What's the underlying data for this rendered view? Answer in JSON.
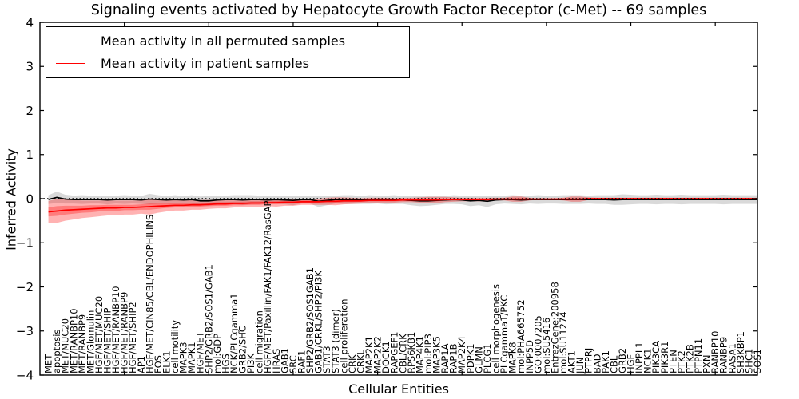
{
  "title": "Signaling events activated by Hepatocyte Growth Factor Receptor (c-Met) -- 69 samples",
  "axes": {
    "x_label": "Cellular Entities",
    "y_label": "Inferred Activity",
    "y_tick_labels": [
      "−4",
      "−3",
      "−2",
      "−1",
      "0",
      "1",
      "2",
      "3",
      "4"
    ],
    "y_tick_values": [
      -4,
      -3,
      -2,
      -1,
      0,
      1,
      2,
      3,
      4
    ],
    "x_tick_values": [
      10,
      20,
      30,
      40,
      50,
      60,
      70,
      80
    ]
  },
  "legend": {
    "entries": [
      {
        "label": "Mean activity in all permuted samples",
        "color": "#000000"
      },
      {
        "label": "Mean activity in patient samples",
        "color": "#ff0000"
      }
    ]
  },
  "chart_data": {
    "type": "line",
    "title": "Signaling events activated by Hepatocyte Growth Factor Receptor (c-Met) -- 69 samples",
    "xlabel": "Cellular Entities",
    "ylabel": "Inferred Activity",
    "xlim": [
      0,
      85
    ],
    "ylim": [
      -4,
      4
    ],
    "grid": false,
    "legend_position": "upper left",
    "zero_line": {
      "style": "dotted",
      "color": "#000000",
      "value": 0
    },
    "categories": [
      "MET",
      "apoptosis",
      "MET/MUC20",
      "MET/RANBP10",
      "MET/RANBP9",
      "MET/Glomulin",
      "HGF/MET/MUC20",
      "HGF/MET/SHIP",
      "HGF/MET/RANBP10",
      "HGF/MET/RANBP9",
      "HGF/MET/SHIP2",
      "AP1",
      "HGF/MET/CIN85/CBL/ENDOPHILINS",
      "FOS",
      "ELK1",
      "cell motility",
      "MAPK3",
      "MAPK1",
      "HGF/MET",
      "SHP2/GRB2/SOS1/GAB1",
      "mol:GDP",
      "HGS",
      "NCK/PLCgamma1",
      "GRB2/SHC",
      "PI3K",
      "cell migration",
      "HGF/MET/Paxillin/FAK1/FAK12/RasGAP",
      "HRAS",
      "GAB1",
      "SRC",
      "RAF1",
      "SHP2/GRB2/SOS1GAB1",
      "GAB1/CRKL/SHP2/PI3K",
      "STAT3",
      "STAT3 (dimer)",
      "cell proliferation",
      "CRK",
      "CRKL",
      "MAP2K1",
      "MAP2K2",
      "DOCK1",
      "RAPGEF1",
      "CBL/CRK",
      "RPS6KB1",
      "MAP4K1",
      "mol:PIP3",
      "MAP3K5",
      "RAP1A",
      "RAP1B",
      "MAP2K4",
      "PDPK1",
      "GLMN",
      "PLCG1",
      "cell morphogenesis",
      "PLCgamma1/PKC",
      "MAPK8",
      "mol:PHA665752",
      "INPP5D",
      "GO:0007205",
      "mol:SU5416",
      "EntrezGene:200958",
      "mol:SU11274",
      "AKT1",
      "JUN",
      "PTPRJ",
      "BAD",
      "PAK1",
      "CBL",
      "GRB2",
      "HGF",
      "INPPL1",
      "NCK1",
      "PIK3CA",
      "PIK3R1",
      "PTEN",
      "PTK2",
      "PTK2B",
      "PTPN11",
      "PXN",
      "RANBP10",
      "RANBP9",
      "RASA1",
      "SH3KBP1",
      "SHC1",
      "SOS1"
    ],
    "series": [
      {
        "name": "Mean activity in all permuted samples",
        "color": "#000000",
        "values": [
          -0.02,
          0.03,
          -0.01,
          -0.02,
          -0.02,
          -0.02,
          -0.02,
          -0.03,
          -0.02,
          -0.02,
          -0.02,
          -0.03,
          -0.01,
          -0.02,
          -0.03,
          -0.02,
          -0.03,
          -0.02,
          -0.05,
          -0.05,
          -0.03,
          -0.02,
          -0.02,
          -0.03,
          -0.02,
          -0.02,
          -0.03,
          -0.02,
          -0.03,
          -0.04,
          -0.02,
          -0.02,
          -0.06,
          -0.04,
          -0.02,
          -0.02,
          -0.02,
          -0.03,
          -0.02,
          -0.02,
          -0.03,
          -0.02,
          -0.03,
          -0.04,
          -0.05,
          -0.05,
          -0.04,
          -0.03,
          -0.02,
          -0.03,
          -0.05,
          -0.04,
          -0.06,
          -0.03,
          -0.02,
          -0.02,
          -0.03,
          -0.02,
          -0.02,
          -0.02,
          -0.02,
          -0.02,
          -0.02,
          -0.02,
          -0.02,
          -0.02,
          -0.02,
          -0.03,
          -0.02,
          -0.02,
          -0.02,
          -0.02,
          -0.02,
          -0.02,
          -0.02,
          -0.02,
          -0.02,
          -0.02,
          -0.02,
          -0.02,
          -0.02,
          -0.02,
          -0.02,
          -0.02,
          -0.02
        ]
      },
      {
        "name": "Mean activity in patient samples",
        "color": "#ff0000",
        "values": [
          -0.3,
          -0.28,
          -0.26,
          -0.25,
          -0.24,
          -0.23,
          -0.22,
          -0.21,
          -0.21,
          -0.2,
          -0.2,
          -0.19,
          -0.18,
          -0.17,
          -0.16,
          -0.15,
          -0.15,
          -0.14,
          -0.14,
          -0.13,
          -0.12,
          -0.12,
          -0.11,
          -0.11,
          -0.1,
          -0.1,
          -0.09,
          -0.09,
          -0.08,
          -0.08,
          -0.07,
          -0.07,
          -0.07,
          -0.06,
          -0.06,
          -0.05,
          -0.05,
          -0.05,
          -0.04,
          -0.04,
          -0.04,
          -0.04,
          -0.03,
          -0.03,
          -0.03,
          -0.03,
          -0.03,
          -0.02,
          -0.02,
          -0.02,
          -0.02,
          -0.02,
          -0.02,
          -0.01,
          -0.01,
          -0.01,
          -0.01,
          -0.01,
          -0.01,
          -0.01,
          -0.01,
          -0.01,
          -0.01,
          -0.01,
          0.0,
          0.0,
          0.0,
          0.0,
          0.0,
          0.0,
          0.0,
          0.0,
          0.0,
          0.0,
          0.0,
          0.0,
          0.0,
          0.0,
          0.0,
          0.0,
          0.0,
          0.0,
          0.0,
          0.0,
          0.0
        ]
      }
    ],
    "bands": [
      {
        "name": "permuted-std-band",
        "series_index": 0,
        "fill_color": "#000000",
        "fill_opacity": 0.15,
        "half_widths": [
          0.1,
          0.13,
          0.1,
          0.09,
          0.1,
          0.09,
          0.09,
          0.1,
          0.09,
          0.1,
          0.09,
          0.09,
          0.12,
          0.1,
          0.09,
          0.1,
          0.09,
          0.1,
          0.1,
          0.11,
          0.09,
          0.09,
          0.1,
          0.11,
          0.1,
          0.09,
          0.1,
          0.09,
          0.1,
          0.11,
          0.09,
          0.09,
          0.13,
          0.11,
          0.09,
          0.1,
          0.1,
          0.09,
          0.1,
          0.09,
          0.1,
          0.1,
          0.09,
          0.11,
          0.12,
          0.11,
          0.1,
          0.09,
          0.1,
          0.1,
          0.12,
          0.11,
          0.13,
          0.1,
          0.09,
          0.1,
          0.1,
          0.09,
          0.1,
          0.09,
          0.09,
          0.1,
          0.1,
          0.1,
          0.09,
          0.1,
          0.1,
          0.11,
          0.12,
          0.11,
          0.1,
          0.1,
          0.11,
          0.1,
          0.1,
          0.11,
          0.1,
          0.1,
          0.1,
          0.1,
          0.11,
          0.1,
          0.1,
          0.1,
          0.1
        ]
      },
      {
        "name": "patient-std-band",
        "series_index": 1,
        "fill_color": "#ff0000",
        "fill_opacity": 0.3,
        "half_widths": [
          0.25,
          0.27,
          0.24,
          0.22,
          0.2,
          0.19,
          0.18,
          0.17,
          0.17,
          0.16,
          0.16,
          0.15,
          0.18,
          0.15,
          0.13,
          0.12,
          0.12,
          0.11,
          0.11,
          0.1,
          0.1,
          0.1,
          0.09,
          0.09,
          0.1,
          0.09,
          0.08,
          0.09,
          0.08,
          0.08,
          0.07,
          0.07,
          0.07,
          0.08,
          0.09,
          0.08,
          0.07,
          0.06,
          0.06,
          0.06,
          0.06,
          0.05,
          0.05,
          0.05,
          0.06,
          0.07,
          0.07,
          0.06,
          0.05,
          0.04,
          0.04,
          0.04,
          0.04,
          0.03,
          0.03,
          0.06,
          0.06,
          0.03,
          0.02,
          0.02,
          0.02,
          0.03,
          0.06,
          0.06,
          0.03,
          0.02,
          0.02,
          0.02,
          0.02,
          0.02,
          0.02,
          0.02,
          0.02,
          0.02,
          0.02,
          0.02,
          0.02,
          0.02,
          0.02,
          0.02,
          0.02,
          0.02,
          0.02,
          0.02,
          0.02
        ]
      },
      {
        "name": "patient-inner-band",
        "series_index": 1,
        "fill_color": "#ff0000",
        "fill_opacity": 0.3,
        "half_widths": [
          0.1,
          0.11,
          0.1,
          0.09,
          0.08,
          0.08,
          0.07,
          0.07,
          0.07,
          0.06,
          0.06,
          0.06,
          0.07,
          0.06,
          0.05,
          0.05,
          0.05,
          0.04,
          0.04,
          0.04,
          0.04,
          0.04,
          0.04,
          0.04,
          0.04,
          0.04,
          0.03,
          0.04,
          0.03,
          0.03,
          0.03,
          0.03,
          0.03,
          0.03,
          0.04,
          0.03,
          0.03,
          0.02,
          0.02,
          0.02,
          0.02,
          0.02,
          0.02,
          0.02,
          0.02,
          0.03,
          0.03,
          0.02,
          0.02,
          0.02,
          0.02,
          0.02,
          0.02,
          0.015,
          0.015,
          0.02,
          0.02,
          0.015,
          0.015,
          0.015,
          0.015,
          0.015,
          0.02,
          0.02,
          0.015,
          0.015,
          0.015,
          0.015,
          0.015,
          0.015,
          0.015,
          0.015,
          0.015,
          0.015,
          0.015,
          0.015,
          0.015,
          0.015,
          0.015,
          0.015,
          0.015,
          0.015,
          0.015,
          0.015,
          0.015
        ]
      }
    ]
  }
}
